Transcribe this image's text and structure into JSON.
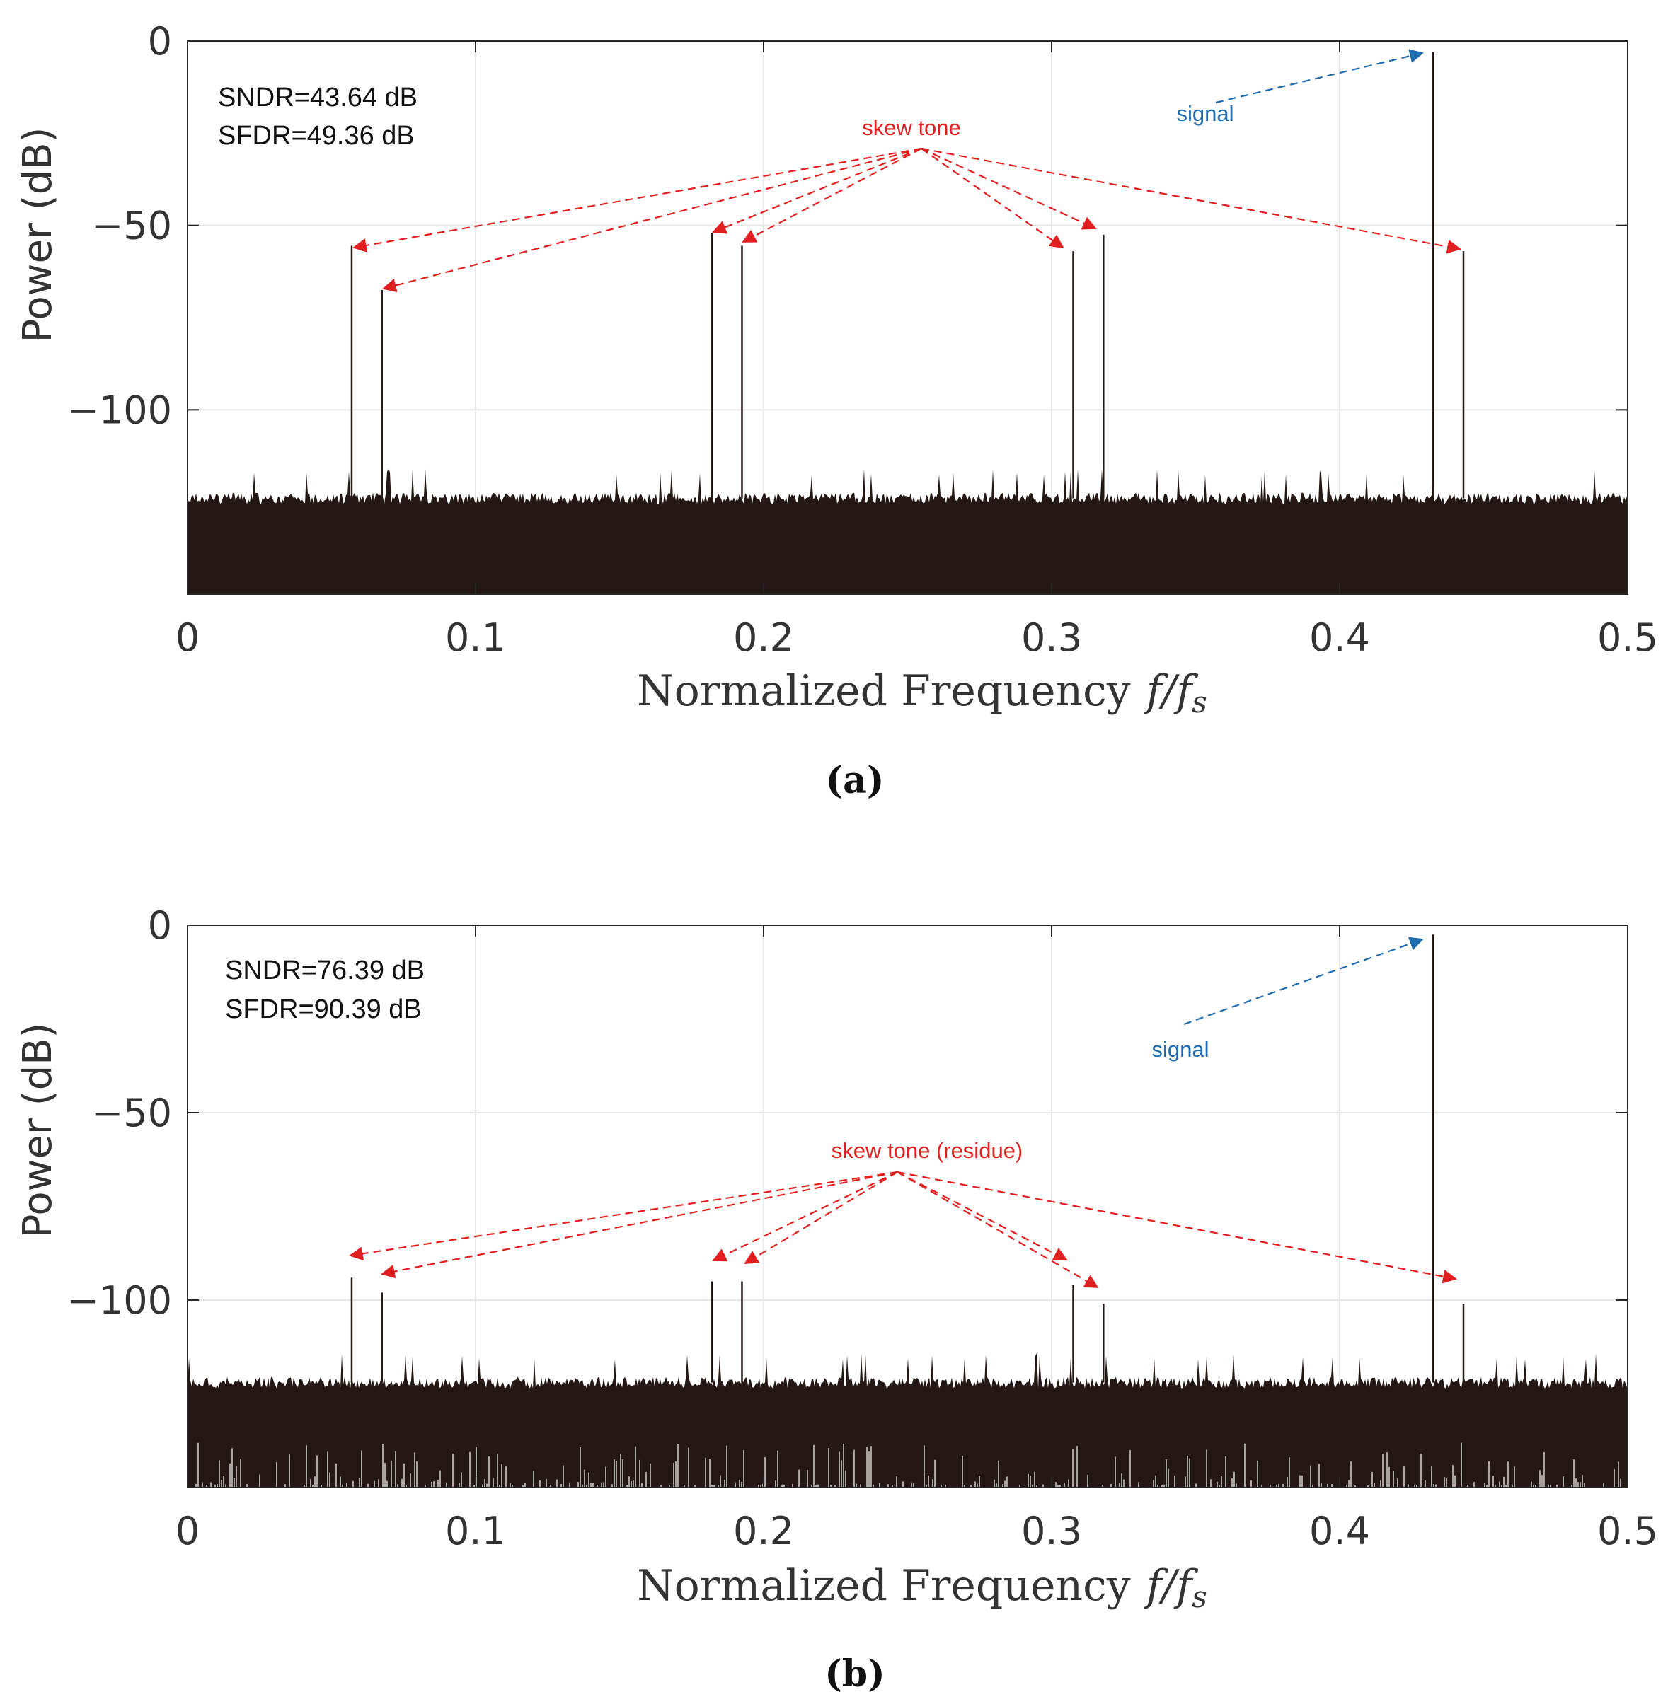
{
  "figure": {
    "colors": {
      "spectrum": "#231815",
      "skew_arrow": "#e02020",
      "signal_arrow": "#1f6cb0",
      "grid": "#e6e6e6",
      "axis": "#262626"
    }
  },
  "chart_data": [
    {
      "type": "line",
      "panel_caption": "(a)",
      "xlabel": "Normalized Frequency",
      "xlabel_math": "f/f",
      "xlabel_math_sub": "s",
      "ylabel": "Power (dB)",
      "xlim": [
        0,
        0.5
      ],
      "ylim": [
        -150,
        0
      ],
      "xticks": [
        0,
        0.1,
        0.2,
        0.3,
        0.4,
        0.5
      ],
      "xtick_labels": [
        "0",
        "0.1",
        "0.2",
        "0.3",
        "0.4",
        "0.5"
      ],
      "yticks": [
        0,
        -50,
        -100
      ],
      "ytick_labels": [
        "0",
        "−50",
        "−100"
      ],
      "grid": true,
      "noise_floor": {
        "top_dB": -124,
        "spike_dB": -116,
        "bottom_dB": -150,
        "bottom_ragged": false
      },
      "stats": {
        "sndr": "SNDR=43.64 dB",
        "sfdr": "SFDR=49.36 dB"
      },
      "series": [
        {
          "x": [
            0.057,
            0.0675,
            0.182,
            0.1925,
            0.3075,
            0.318,
            0.4325,
            0.443
          ],
          "y": [
            -55.5,
            -67.5,
            -52,
            -55.5,
            -57,
            -52.5,
            -3,
            -57
          ]
        }
      ],
      "signal": {
        "label": "signal",
        "x": 0.4325,
        "y": -3
      },
      "skew": {
        "label": "skew tone",
        "x": [
          0.057,
          0.0675,
          0.182,
          0.1925,
          0.3075,
          0.318,
          0.443
        ]
      }
    },
    {
      "type": "line",
      "panel_caption": "(b)",
      "xlabel": "Normalized Frequency",
      "xlabel_math": "f/f",
      "xlabel_math_sub": "s",
      "ylabel": "Power (dB)",
      "xlim": [
        0,
        0.5
      ],
      "ylim": [
        -150,
        0
      ],
      "xticks": [
        0,
        0.1,
        0.2,
        0.3,
        0.4,
        0.5
      ],
      "xtick_labels": [
        "0",
        "0.1",
        "0.2",
        "0.3",
        "0.4",
        "0.5"
      ],
      "yticks": [
        0,
        -50,
        -100
      ],
      "ytick_labels": [
        "0",
        "−50",
        "−100"
      ],
      "grid": true,
      "noise_floor": {
        "top_dB": -122,
        "spike_dB": -114,
        "bottom_dB": -150,
        "bottom_ragged": true
      },
      "stats": {
        "sndr": "SNDR=76.39 dB",
        "sfdr": "SFDR=90.39 dB"
      },
      "series": [
        {
          "x": [
            0.057,
            0.0675,
            0.182,
            0.1925,
            0.3075,
            0.318,
            0.4325,
            0.443
          ],
          "y": [
            -94,
            -98,
            -95,
            -95,
            -96,
            -101,
            -2.5,
            -101
          ]
        }
      ],
      "signal": {
        "label": "signal",
        "x": 0.4325,
        "y": -2.5
      },
      "skew": {
        "label": "skew tone (residue)",
        "x": [
          0.057,
          0.0675,
          0.182,
          0.1925,
          0.3075,
          0.318,
          0.443
        ]
      }
    }
  ]
}
